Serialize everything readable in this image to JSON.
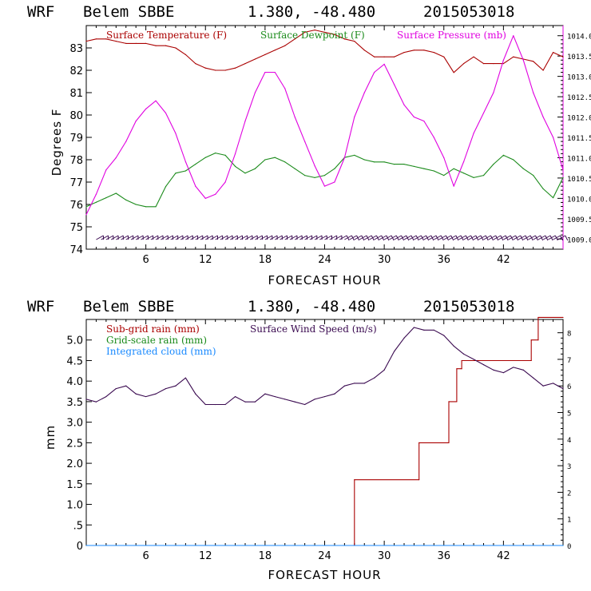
{
  "chart_data": [
    {
      "type": "line",
      "header": {
        "model": "WRF",
        "station": "Belem SBBE",
        "coords": "1.380, -48.480",
        "init_time": "2015053018"
      },
      "xlabel": "FORECAST HOUR",
      "ylabel": "Degrees F",
      "xlim": [
        0,
        48
      ],
      "ylim": [
        74,
        84
      ],
      "x_ticks": [
        6,
        12,
        18,
        24,
        30,
        36,
        42
      ],
      "y_ticks": [
        74,
        75,
        76,
        77,
        78,
        79,
        80,
        81,
        82,
        83
      ],
      "y2_label": "Surface Pressure (mb)",
      "y2_ticks": [
        "1009.0",
        "1009.5",
        "1010.0",
        "1010.5",
        "1011.0",
        "1011.5",
        "1012.0",
        "1012.5",
        "1013.0",
        "1013.5",
        "1014.0"
      ],
      "y2_lim": [
        1008.75,
        1014.25
      ],
      "wind_barbs": "surface wind barbs along bottom",
      "series": [
        {
          "name": "Surface Temperature (F)",
          "color": "#aa0000",
          "axis": "left",
          "x": [
            0,
            1,
            2,
            3,
            4,
            5,
            6,
            7,
            8,
            9,
            10,
            11,
            12,
            13,
            14,
            15,
            16,
            17,
            18,
            19,
            20,
            21,
            22,
            23,
            24,
            25,
            26,
            27,
            28,
            29,
            30,
            31,
            32,
            33,
            34,
            35,
            36,
            37,
            38,
            39,
            40,
            41,
            42,
            43,
            44,
            45,
            46,
            47,
            48
          ],
          "values": [
            83.3,
            83.4,
            83.4,
            83.3,
            83.2,
            83.2,
            83.2,
            83.1,
            83.1,
            83.0,
            82.7,
            82.3,
            82.1,
            82.0,
            82.0,
            82.1,
            82.3,
            82.5,
            82.7,
            82.9,
            83.1,
            83.4,
            83.7,
            83.8,
            83.7,
            83.6,
            83.4,
            83.3,
            82.9,
            82.6,
            82.6,
            82.6,
            82.8,
            82.9,
            82.9,
            82.8,
            82.6,
            81.9,
            82.3,
            82.6,
            82.3,
            82.3,
            82.3,
            82.6,
            82.5,
            82.4,
            82.0,
            82.8,
            82.6
          ]
        },
        {
          "name": "Surface Dewpoint (F)",
          "color": "#1a8a1a",
          "axis": "left",
          "x": [
            0,
            1,
            2,
            3,
            4,
            5,
            6,
            7,
            8,
            9,
            10,
            11,
            12,
            13,
            14,
            15,
            16,
            17,
            18,
            19,
            20,
            21,
            22,
            23,
            24,
            25,
            26,
            27,
            28,
            29,
            30,
            31,
            32,
            33,
            34,
            35,
            36,
            37,
            38,
            39,
            40,
            41,
            42,
            43,
            44,
            45,
            46,
            47,
            48
          ],
          "values": [
            75.9,
            76.1,
            76.3,
            76.5,
            76.2,
            76.0,
            75.9,
            75.9,
            76.8,
            77.4,
            77.5,
            77.8,
            78.1,
            78.3,
            78.2,
            77.7,
            77.4,
            77.6,
            78.0,
            78.1,
            77.9,
            77.6,
            77.3,
            77.2,
            77.3,
            77.6,
            78.1,
            78.2,
            78.0,
            77.9,
            77.9,
            77.8,
            77.8,
            77.7,
            77.6,
            77.5,
            77.3,
            77.6,
            77.4,
            77.2,
            77.3,
            77.8,
            78.2,
            78.0,
            77.6,
            77.3,
            76.7,
            76.3,
            77.2
          ]
        },
        {
          "name": "Surface Pressure (mb)",
          "color": "#e000e0",
          "axis": "right",
          "x": [
            0,
            1,
            2,
            3,
            4,
            5,
            6,
            7,
            8,
            9,
            10,
            11,
            12,
            13,
            14,
            15,
            16,
            17,
            18,
            19,
            20,
            21,
            22,
            23,
            24,
            25,
            26,
            27,
            28,
            29,
            30,
            31,
            32,
            33,
            34,
            35,
            36,
            37,
            38,
            39,
            40,
            41,
            42,
            43,
            44,
            45,
            46,
            47,
            48
          ],
          "values": [
            1009.6,
            1010.1,
            1010.7,
            1011.0,
            1011.4,
            1011.9,
            1012.2,
            1012.4,
            1012.1,
            1011.6,
            1010.9,
            1010.3,
            1010.0,
            1010.1,
            1010.4,
            1011.1,
            1011.9,
            1012.6,
            1013.1,
            1013.1,
            1012.7,
            1012.0,
            1011.4,
            1010.8,
            1010.3,
            1010.4,
            1011.0,
            1012.0,
            1012.6,
            1013.1,
            1013.3,
            1012.8,
            1012.3,
            1012.0,
            1011.9,
            1011.5,
            1011.0,
            1010.3,
            1010.9,
            1011.6,
            1012.1,
            1012.6,
            1013.4,
            1014.0,
            1013.4,
            1012.6,
            1012.0,
            1011.5,
            1010.7
          ]
        }
      ]
    },
    {
      "type": "line",
      "header": {
        "model": "WRF",
        "station": "Belem SBBE",
        "coords": "1.380, -48.480",
        "init_time": "2015053018"
      },
      "xlabel": "FORECAST HOUR",
      "ylabel": "mm",
      "xlim": [
        0,
        48
      ],
      "ylim": [
        0,
        5.5
      ],
      "x_ticks": [
        6,
        12,
        18,
        24,
        30,
        36,
        42
      ],
      "y_ticks": [
        "0",
        ".5",
        "1.0",
        "1.5",
        "2.0",
        "2.5",
        "3.0",
        "3.5",
        "4.0",
        "4.5",
        "5.0"
      ],
      "y2_label": "Surface Wind Speed (m/s)",
      "y2_ticks": [
        "0",
        "1",
        "2",
        "3",
        "4",
        "5",
        "6",
        "7",
        "8"
      ],
      "y2_lim": [
        0,
        8.5
      ],
      "series": [
        {
          "name": "Sub-grid rain (mm)",
          "color": "#aa0000",
          "axis": "left",
          "step": true,
          "x": [
            0,
            27,
            27,
            33.5,
            33.5,
            36.5,
            36.5,
            37.3,
            37.3,
            37.8,
            37.8,
            44.8,
            44.8,
            45.5,
            45.5,
            48
          ],
          "values": [
            0,
            0,
            1.6,
            1.6,
            2.5,
            2.5,
            3.5,
            3.5,
            4.3,
            4.3,
            4.5,
            4.5,
            5.0,
            5.0,
            5.55,
            5.55
          ]
        },
        {
          "name": "Grid-scale rain (mm)",
          "color": "#1a8a1a",
          "axis": "left",
          "x": [
            0,
            48
          ],
          "values": [
            0,
            0
          ]
        },
        {
          "name": "Integrated cloud (mm)",
          "color": "#1a8aff",
          "axis": "left",
          "x": [
            0,
            48
          ],
          "values": [
            0,
            0
          ]
        },
        {
          "name": "Surface Wind Speed (m/s)",
          "color": "#3a0a50",
          "axis": "right",
          "x": [
            0,
            1,
            2,
            3,
            4,
            5,
            6,
            7,
            8,
            9,
            10,
            11,
            12,
            13,
            14,
            15,
            16,
            17,
            18,
            19,
            20,
            21,
            22,
            23,
            24,
            25,
            26,
            27,
            28,
            29,
            30,
            31,
            32,
            33,
            34,
            35,
            36,
            37,
            38,
            39,
            40,
            41,
            42,
            43,
            44,
            45,
            46,
            47,
            48
          ],
          "values": [
            5.5,
            5.4,
            5.6,
            5.9,
            6.0,
            5.7,
            5.6,
            5.7,
            5.9,
            6.0,
            6.3,
            5.7,
            5.3,
            5.3,
            5.3,
            5.6,
            5.4,
            5.4,
            5.7,
            5.6,
            5.5,
            5.4,
            5.3,
            5.5,
            5.6,
            5.7,
            6.0,
            6.1,
            6.1,
            6.3,
            6.6,
            7.3,
            7.8,
            8.2,
            8.1,
            8.1,
            7.9,
            7.5,
            7.2,
            7.0,
            6.8,
            6.6,
            6.5,
            6.7,
            6.6,
            6.3,
            6.0,
            6.1,
            5.9
          ]
        }
      ]
    }
  ]
}
